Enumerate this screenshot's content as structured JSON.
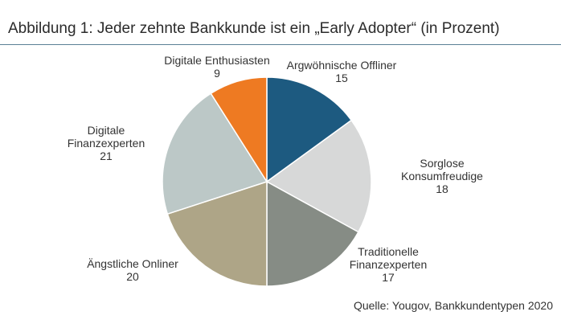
{
  "title": "Abbildung 1: Jeder zehnte Bankkunde ist ein „Early Adopter“ (in Prozent)",
  "source": "Quelle: Yougov, Bankkundentypen 2020",
  "chart_data": {
    "type": "pie",
    "title": "Abbildung 1: Jeder zehnte Bankkunde ist ein „Early Adopter“ (in Prozent)",
    "slices": [
      {
        "label": [
          "Argwöhnische Offliner"
        ],
        "value": 15,
        "color": "#1d5a80"
      },
      {
        "label": [
          "Sorglose",
          "Konsumfreudige"
        ],
        "value": 18,
        "color": "#d7d8d8"
      },
      {
        "label": [
          "Traditionelle",
          "Finanzexperten"
        ],
        "value": 17,
        "color": "#868c85"
      },
      {
        "label": [
          "Ängstliche Onliner"
        ],
        "value": 20,
        "color": "#aea587"
      },
      {
        "label": [
          "Digitale",
          "Finanzexperten"
        ],
        "value": 21,
        "color": "#bcc8c7"
      },
      {
        "label": [
          "Digitale Enthusiasten"
        ],
        "value": 9,
        "color": "#ee7a22"
      }
    ]
  }
}
